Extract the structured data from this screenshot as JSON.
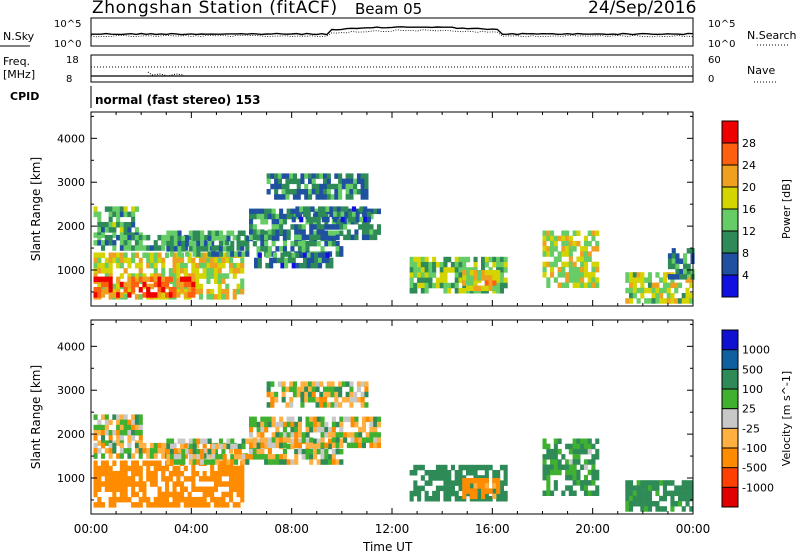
{
  "header": {
    "station": "Zhongshan Station (fitACF)",
    "beam": "Beam 05",
    "date": "24/Sep/2016"
  },
  "top_panels": {
    "nsky_label": "N.Sky",
    "nsky_ticks": [
      "10^5",
      "10^0"
    ],
    "nsearch_label": "N.Search",
    "freq_label": "Freq.",
    "freq_unit": "[MHz]",
    "freq_ticks": [
      "18",
      "8"
    ],
    "nave_label": "Nave",
    "nave_ticks": [
      "60",
      "0"
    ],
    "cpid_label": "CPID",
    "cpid_text": "normal (fast stereo) 153"
  },
  "chart_data": [
    {
      "type": "heatmap",
      "title": "",
      "xlabel": "Time UT",
      "ylabel": "Slant Range [km]",
      "x_ticks": [
        "00:00",
        "04:00",
        "08:00",
        "12:00",
        "16:00",
        "20:00",
        "00:00"
      ],
      "x_range_hours": [
        0,
        24
      ],
      "y_ticks": [
        "1000",
        "2000",
        "3000",
        "4000"
      ],
      "y_range_km": [
        180,
        4600
      ],
      "colorbar": {
        "label": "Power [dB]",
        "ticks": [
          "4",
          "8",
          "12",
          "16",
          "20",
          "24",
          "28"
        ],
        "range": [
          0,
          32
        ],
        "colors": [
          "#1010e0",
          "#2050a0",
          "#2e8b57",
          "#66cc66",
          "#d4d400",
          "#f0a020",
          "#ff6010",
          "#ee0000"
        ]
      },
      "echo_regions": [
        {
          "t": [
            0.1,
            2.0
          ],
          "r": [
            1850,
            2450
          ],
          "level": 12
        },
        {
          "t": [
            0.1,
            6.2
          ],
          "r": [
            1500,
            1800
          ],
          "level": 11
        },
        {
          "t": [
            0.1,
            6.0
          ],
          "r": [
            450,
            1400
          ],
          "level": 18
        },
        {
          "t": [
            0.1,
            4.0
          ],
          "r": [
            450,
            850
          ],
          "level": 27
        },
        {
          "t": [
            3.0,
            10.0
          ],
          "r": [
            1400,
            1900
          ],
          "level": 10
        },
        {
          "t": [
            6.3,
            11.5
          ],
          "r": [
            1700,
            2400
          ],
          "level": 9
        },
        {
          "t": [
            6.5,
            9.5
          ],
          "r": [
            1150,
            1400
          ],
          "level": 8
        },
        {
          "t": [
            7.0,
            11.0
          ],
          "r": [
            2650,
            3200
          ],
          "level": 9
        },
        {
          "t": [
            8.0,
            11.0
          ],
          "r": [
            2150,
            2450
          ],
          "level": 8
        },
        {
          "t": [
            12.7,
            16.5
          ],
          "r": [
            500,
            1300
          ],
          "level": 14
        },
        {
          "t": [
            14.8,
            16.2
          ],
          "r": [
            600,
            1000
          ],
          "level": 20
        },
        {
          "t": [
            18.0,
            20.2
          ],
          "r": [
            600,
            1900
          ],
          "level": 17
        },
        {
          "t": [
            21.3,
            24.0
          ],
          "r": [
            350,
            950
          ],
          "level": 16
        },
        {
          "t": [
            23.0,
            24.0
          ],
          "r": [
            900,
            1500
          ],
          "level": 10
        }
      ]
    },
    {
      "type": "heatmap",
      "title": "",
      "xlabel": "Time UT",
      "ylabel": "Slant Range [km]",
      "x_ticks": [
        "00:00",
        "04:00",
        "08:00",
        "12:00",
        "16:00",
        "20:00",
        "00:00"
      ],
      "x_range_hours": [
        0,
        24
      ],
      "y_ticks": [
        "1000",
        "2000",
        "3000",
        "4000"
      ],
      "y_range_km": [
        180,
        4600
      ],
      "colorbar": {
        "label": "Velocity [m s^-1]",
        "ticks": [
          "-1000",
          "-500",
          "-100",
          "-25",
          "25",
          "100",
          "500",
          "1000"
        ],
        "colors": [
          "#e00000",
          "#ff4000",
          "#ff8c00",
          "#ffb040",
          "#c8c8c8",
          "#40b030",
          "#2e8b57",
          "#1060a0",
          "#1010d0"
        ]
      },
      "echo_regions": [
        {
          "t": [
            0.1,
            2.0
          ],
          "r": [
            1850,
            2450
          ],
          "v": 0
        },
        {
          "t": [
            0.1,
            6.2
          ],
          "r": [
            1500,
            1800
          ],
          "v": 0
        },
        {
          "t": [
            0.1,
            6.0
          ],
          "r": [
            450,
            1400
          ],
          "v": -300
        },
        {
          "t": [
            3.0,
            10.0
          ],
          "r": [
            1400,
            1900
          ],
          "v": 0
        },
        {
          "t": [
            6.3,
            11.5
          ],
          "r": [
            1700,
            2400
          ],
          "v": 0
        },
        {
          "t": [
            7.0,
            11.0
          ],
          "r": [
            2650,
            3200
          ],
          "v": 0
        },
        {
          "t": [
            12.7,
            16.5
          ],
          "r": [
            500,
            1300
          ],
          "v": 300
        },
        {
          "t": [
            14.8,
            16.2
          ],
          "r": [
            600,
            1000
          ],
          "v": -200
        },
        {
          "t": [
            18.0,
            20.2
          ],
          "r": [
            600,
            1900
          ],
          "v": 150
        },
        {
          "t": [
            21.3,
            24.0
          ],
          "r": [
            350,
            950
          ],
          "v": 200
        }
      ]
    }
  ],
  "xlabel": "Time UT"
}
